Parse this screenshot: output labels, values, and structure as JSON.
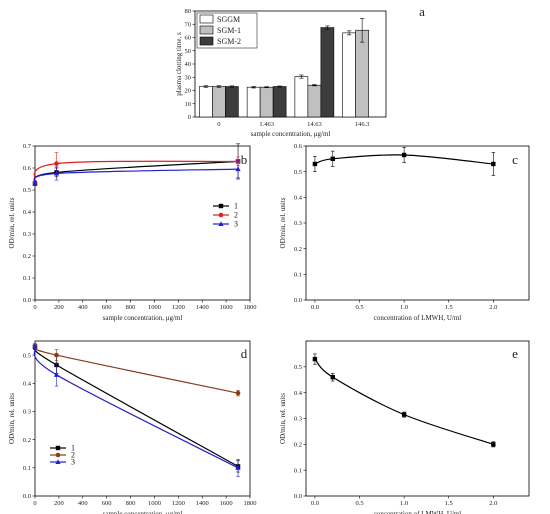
{
  "chart_data": [
    {
      "panel": "a",
      "type": "bar",
      "ylabel": "plasma clotting time, s",
      "xlabel": "sample concentration, μg/ml",
      "categories": [
        "0",
        "1.463",
        "14.63",
        "146.3"
      ],
      "ylim": [
        0,
        80
      ],
      "yticks": [
        0,
        10,
        20,
        30,
        40,
        50,
        60,
        70,
        80
      ],
      "legend_position": "top-left",
      "series": [
        {
          "name": "SGGM",
          "color": "#ffffff",
          "values": [
            23,
            22.5,
            30.5,
            63.5
          ],
          "errors": [
            0.6,
            0.6,
            1.2,
            1.5
          ]
        },
        {
          "name": "SGM-1",
          "color": "#c0c0c0",
          "values": [
            23,
            22.5,
            24,
            65.5
          ],
          "errors": [
            0.6,
            0.4,
            0.5,
            9
          ]
        },
        {
          "name": "SGM-2",
          "color": "#3c3c3c",
          "values": [
            23,
            23,
            67.5,
            null
          ],
          "errors": [
            0.5,
            0.4,
            1.2,
            null
          ]
        }
      ]
    },
    {
      "panel": "b",
      "type": "line",
      "ylabel": "OD/min, rel. units",
      "xlabel": "sample concentration, μg/ml",
      "xlim": [
        0,
        1800
      ],
      "ylim": [
        0,
        0.7
      ],
      "xticks": [
        0,
        200,
        400,
        600,
        800,
        1000,
        1200,
        1400,
        1600,
        1800
      ],
      "yticks": [
        0.0,
        0.1,
        0.2,
        0.3,
        0.4,
        0.5,
        0.6,
        0.7
      ],
      "legend_position": "center-right",
      "series": [
        {
          "name": "1",
          "color": "#000000",
          "marker": "square",
          "x": [
            0,
            180,
            1700
          ],
          "y": [
            0.53,
            0.58,
            0.63
          ],
          "errors": [
            0.01,
            0.02,
            0.08
          ]
        },
        {
          "name": "2",
          "color": "#e02020",
          "marker": "circle",
          "x": [
            0,
            180,
            1700
          ],
          "y": [
            0.53,
            0.62,
            0.63
          ],
          "errors": [
            0.01,
            0.05,
            0.02
          ]
        },
        {
          "name": "3",
          "color": "#2020d0",
          "marker": "triangle",
          "x": [
            0,
            180,
            1700
          ],
          "y": [
            0.53,
            0.575,
            0.595
          ],
          "errors": [
            0.01,
            0.03,
            0.04
          ]
        }
      ]
    },
    {
      "panel": "c",
      "type": "line",
      "ylabel": "OD/min, rel. units",
      "xlabel": "concentration of LMWH, U/ml",
      "xlim": [
        -0.1,
        2.4
      ],
      "ylim": [
        0,
        0.6
      ],
      "xticks": [
        0.0,
        0.5,
        1.0,
        1.5,
        2.0
      ],
      "yticks": [
        0.0,
        0.1,
        0.2,
        0.3,
        0.4,
        0.5,
        0.6
      ],
      "series": [
        {
          "color": "#000000",
          "marker": "square",
          "x": [
            0,
            0.2,
            1.0,
            2.0
          ],
          "y": [
            0.53,
            0.55,
            0.565,
            0.53
          ],
          "errors": [
            0.03,
            0.03,
            0.03,
            0.045
          ]
        }
      ]
    },
    {
      "panel": "d",
      "type": "line",
      "ylabel": "OD/min, rel. units",
      "xlabel": "sample concentration, μg/ml",
      "xlim": [
        0,
        1800
      ],
      "ylim": [
        0,
        0.55
      ],
      "xticks": [
        0,
        200,
        400,
        600,
        800,
        1000,
        1200,
        1400,
        1600,
        1800
      ],
      "yticks": [
        0.0,
        0.1,
        0.2,
        0.3,
        0.4,
        0.5
      ],
      "legend_position": "bottom-left",
      "series": [
        {
          "name": "1",
          "color": "#000000",
          "marker": "square",
          "x": [
            0,
            180,
            1700
          ],
          "y": [
            0.53,
            0.465,
            0.105
          ],
          "errors": [
            0.01,
            0.03,
            0.02
          ]
        },
        {
          "name": "2",
          "color": "#8b3a1a",
          "marker": "circle",
          "x": [
            0,
            180,
            1700
          ],
          "y": [
            0.53,
            0.5,
            0.365
          ],
          "errors": [
            0.01,
            0.02,
            0.01
          ]
        },
        {
          "name": "3",
          "color": "#2020d0",
          "marker": "triangle",
          "x": [
            0,
            180,
            1700
          ],
          "y": [
            0.53,
            0.43,
            0.1
          ],
          "errors": [
            0.01,
            0.04,
            0.03
          ]
        }
      ]
    },
    {
      "panel": "e",
      "type": "line",
      "ylabel": "OD/min, rel. units",
      "xlabel": "concentration of LMWH, U/ml",
      "xlim": [
        -0.1,
        2.4
      ],
      "ylim": [
        0,
        0.6
      ],
      "xticks": [
        0.0,
        0.5,
        1.0,
        1.5,
        2.0
      ],
      "yticks": [
        0.0,
        0.1,
        0.2,
        0.3,
        0.4,
        0.5
      ],
      "series": [
        {
          "color": "#000000",
          "marker": "square",
          "x": [
            0,
            0.2,
            1.0,
            2.0
          ],
          "y": [
            0.53,
            0.46,
            0.315,
            0.2
          ],
          "errors": [
            0.02,
            0.015,
            0.01,
            0.01
          ]
        }
      ]
    }
  ]
}
